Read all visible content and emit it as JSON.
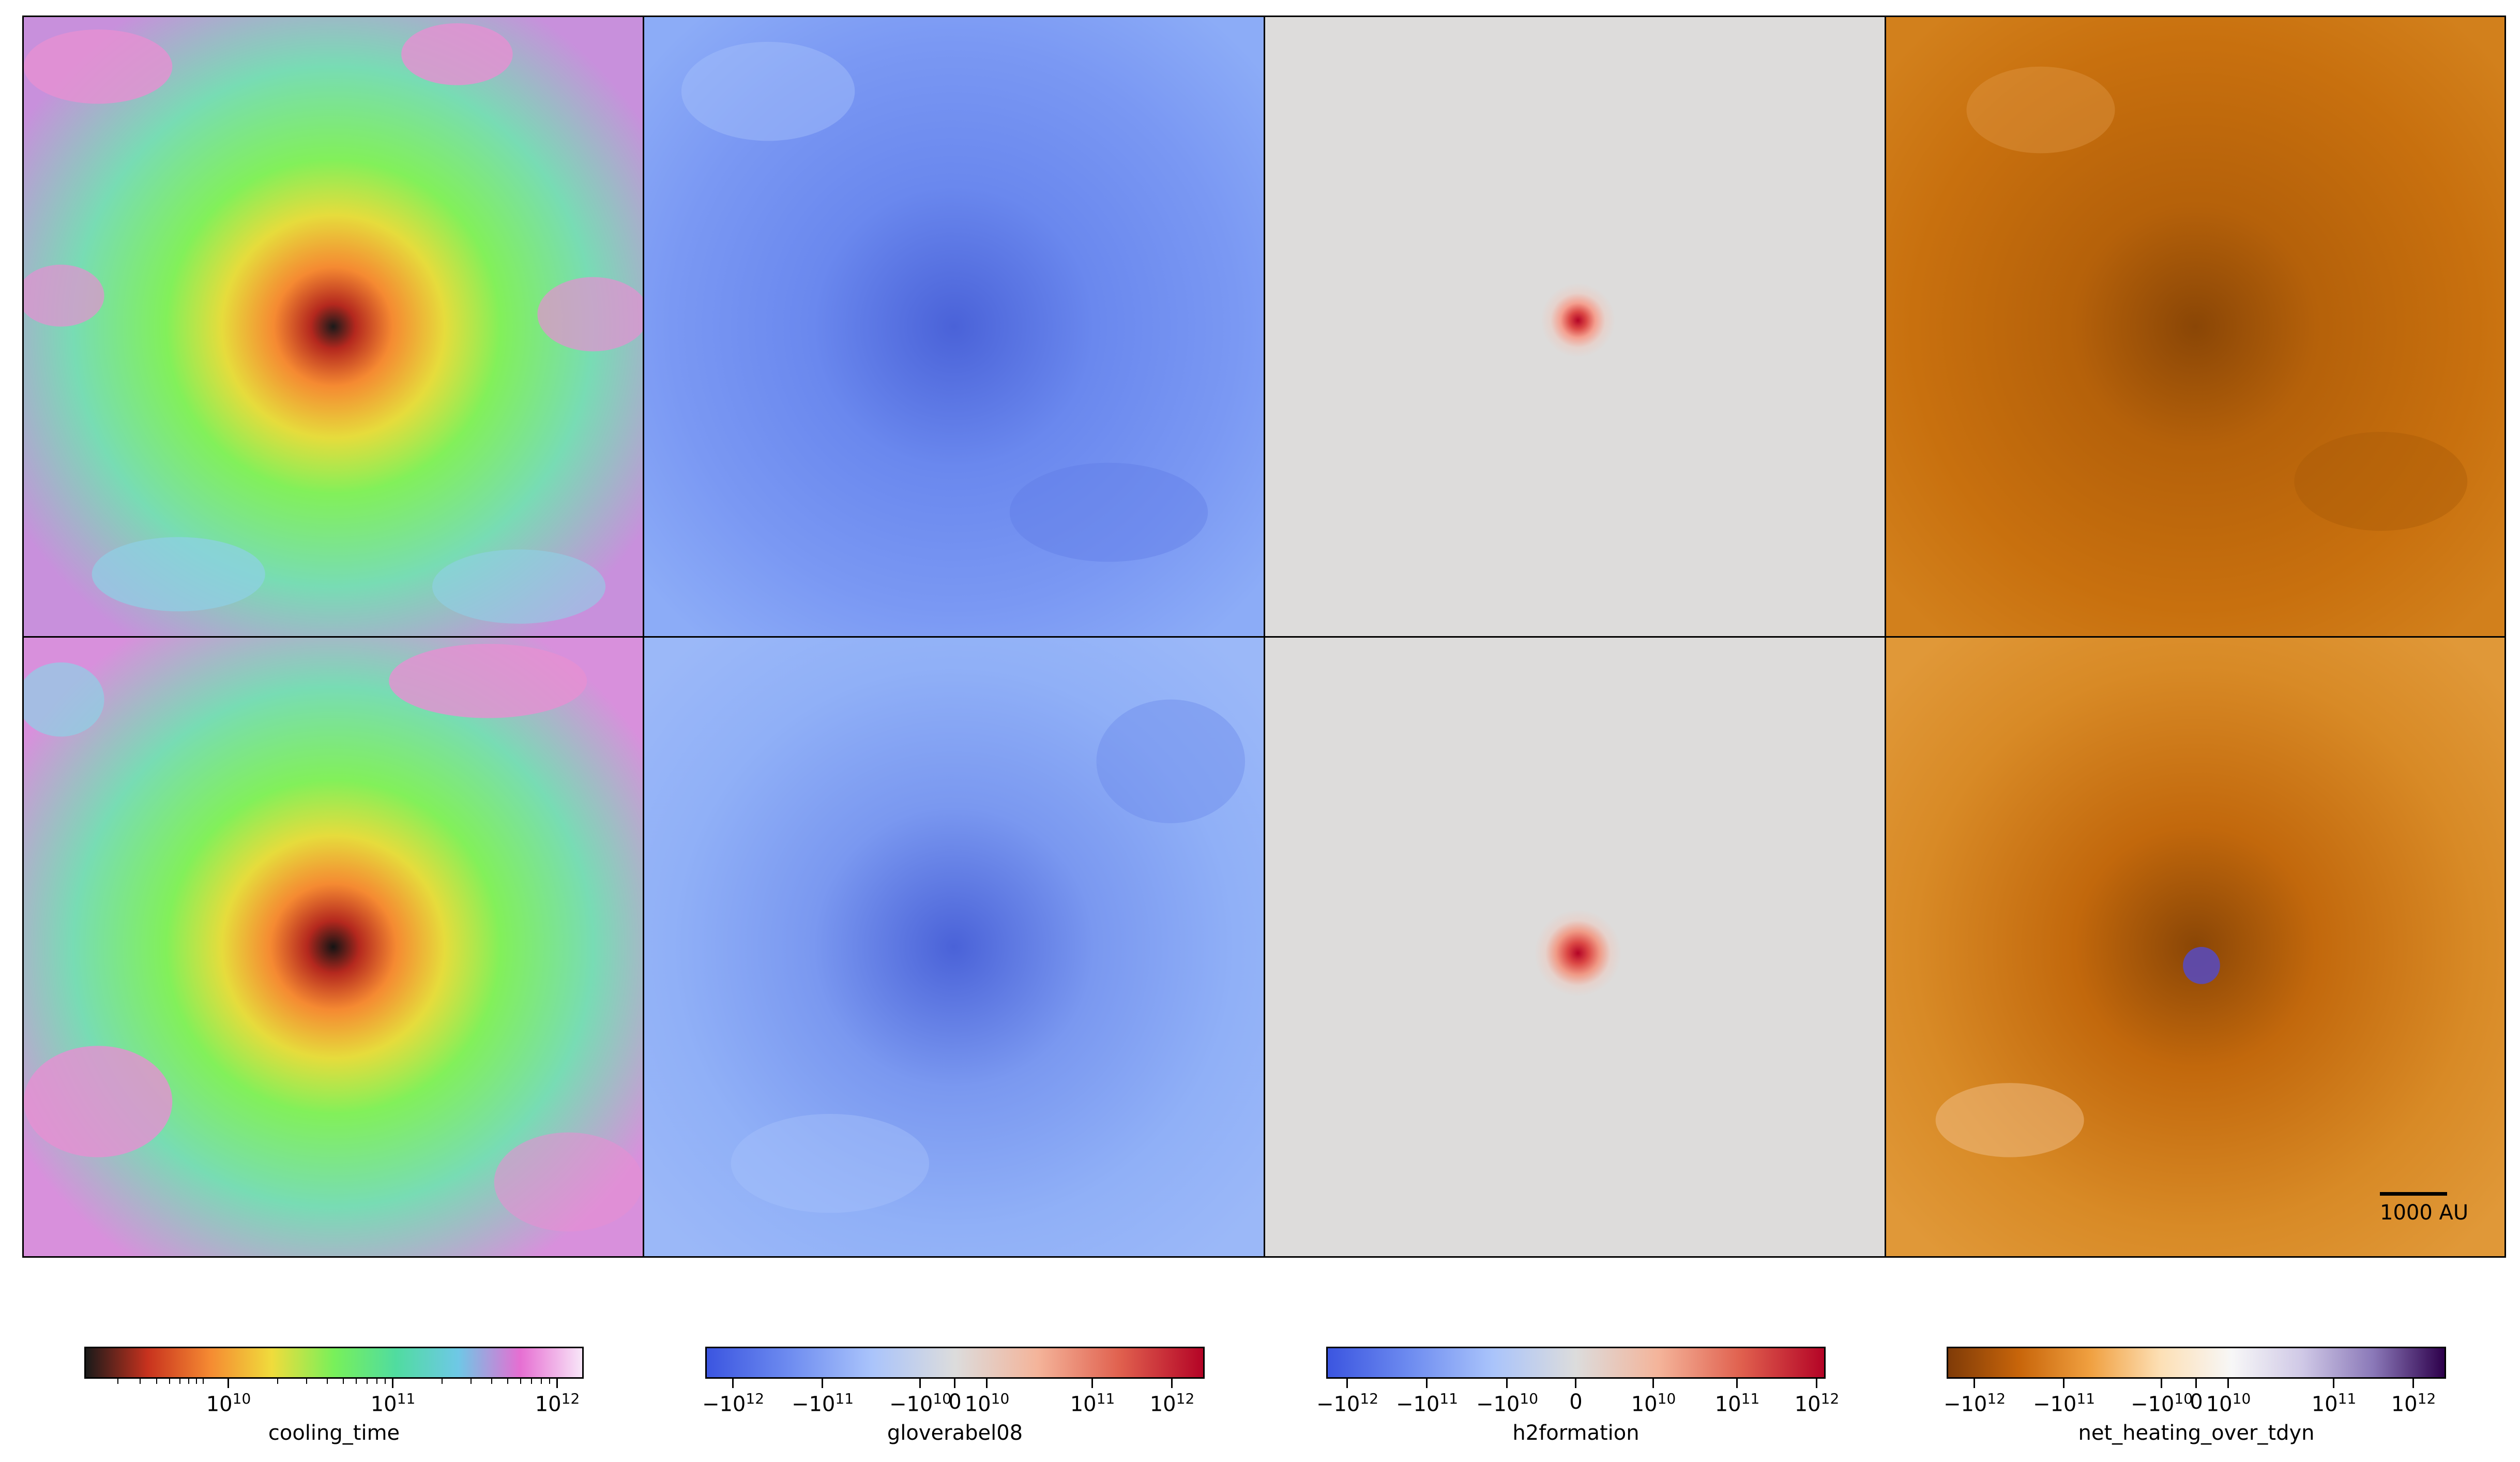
{
  "scale_bar_label": "1000 AU",
  "colorbars": [
    {
      "field": "cooling_time",
      "colors": [
        "#1a1a1a",
        "#c8321e",
        "#f58a32",
        "#f0dc3c",
        "#78f05a",
        "#50dca0",
        "#6ec8e6",
        "#e66ed2",
        "#f8e6f8"
      ],
      "ticks": [
        "10",
        "11",
        "12"
      ]
    },
    {
      "field": "gloverabel08",
      "colors": [
        "#3b55e0",
        "#6e8cf0",
        "#aac4fb",
        "#dcdcdc",
        "#f4b49a",
        "#e0604e",
        "#b40426"
      ],
      "ticks": [
        "−10",
        "−11",
        "−10",
        "0",
        "10",
        "11",
        "12"
      ]
    },
    {
      "field": "h2formation",
      "colors": [
        "#3b55e0",
        "#6e8cf0",
        "#aac4fb",
        "#dcdcdc",
        "#f4b49a",
        "#e0604e",
        "#b40426"
      ],
      "ticks": [
        "−10",
        "−11",
        "−10",
        "0",
        "10",
        "11",
        "12"
      ]
    },
    {
      "field": "net_heating_over_tdyn",
      "colors": [
        "#7f3b08",
        "#c8650a",
        "#f0a040",
        "#fde0b6",
        "#f7f7f7",
        "#cfc8e6",
        "#8a78b8",
        "#2d004b"
      ],
      "ticks": [
        "−10",
        "−11",
        "−10",
        "0",
        "10",
        "11",
        "12"
      ]
    }
  ],
  "chart_data": [
    {
      "type": "heatmap",
      "row": 1,
      "field": "cooling_time",
      "scale": "log",
      "range": [
        1000000000.0,
        1000000000000.0
      ]
    },
    {
      "type": "heatmap",
      "row": 1,
      "field": "gloverabel08",
      "scale": "symlog",
      "range": [
        -1000000000000.0,
        1000000000000.0
      ]
    },
    {
      "type": "heatmap",
      "row": 1,
      "field": "h2formation",
      "scale": "symlog",
      "range": [
        -1000000000000.0,
        1000000000000.0
      ]
    },
    {
      "type": "heatmap",
      "row": 1,
      "field": "net_heating_over_tdyn",
      "scale": "symlog",
      "range": [
        -1000000000000.0,
        1000000000000.0
      ]
    },
    {
      "type": "heatmap",
      "row": 2,
      "field": "cooling_time",
      "scale": "log",
      "range": [
        1000000000.0,
        1000000000000.0
      ]
    },
    {
      "type": "heatmap",
      "row": 2,
      "field": "gloverabel08",
      "scale": "symlog",
      "range": [
        -1000000000000.0,
        1000000000000.0
      ]
    },
    {
      "type": "heatmap",
      "row": 2,
      "field": "h2formation",
      "scale": "symlog",
      "range": [
        -1000000000000.0,
        1000000000000.0
      ]
    },
    {
      "type": "heatmap",
      "row": 2,
      "field": "net_heating_over_tdyn",
      "scale": "symlog",
      "range": [
        -1000000000000.0,
        1000000000000.0
      ]
    }
  ]
}
